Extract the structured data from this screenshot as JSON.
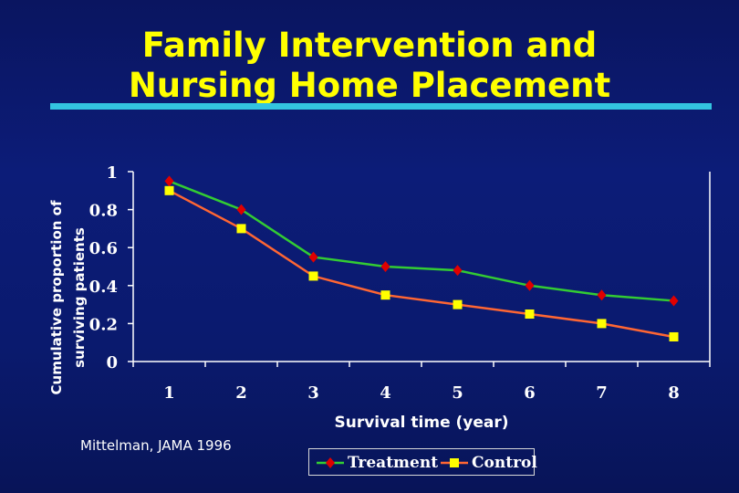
{
  "title_lines": [
    "Family Intervention and",
    "Nursing Home Placement"
  ],
  "source": "Mittelman, JAMA 1996",
  "colors": {
    "title": "#ffff00",
    "underline": "#33c4e0",
    "treatment_line": "#33cc33",
    "treatment_marker": "#e00000",
    "control_line": "#ff6633",
    "control_marker": "#ffff00"
  },
  "chart_data": {
    "type": "line",
    "xlabel": "Survival time (year)",
    "ylabel_lines": [
      "Cumulative proportion of",
      "surviving patients"
    ],
    "categories": [
      "1",
      "2",
      "3",
      "4",
      "5",
      "6",
      "7",
      "8"
    ],
    "y_ticks": [
      "0",
      "0.2",
      "0.4",
      "0.6",
      "0.8",
      "1"
    ],
    "ylim": [
      0,
      1
    ],
    "grid": false,
    "legend_position": "bottom",
    "series": [
      {
        "name": "Treatment",
        "marker": "diamond",
        "values": [
          0.95,
          0.8,
          0.55,
          0.5,
          0.48,
          0.4,
          0.35,
          0.32
        ]
      },
      {
        "name": "Control",
        "marker": "square",
        "values": [
          0.9,
          0.7,
          0.45,
          0.35,
          0.3,
          0.25,
          0.2,
          0.13
        ]
      }
    ]
  }
}
